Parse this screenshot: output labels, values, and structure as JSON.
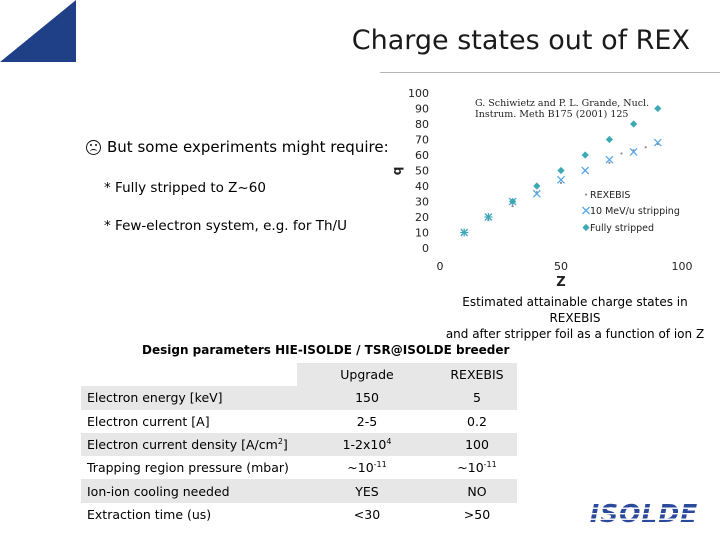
{
  "header": {
    "title": "Charge states out of REX"
  },
  "bullets": {
    "main": "But some experiments might require:",
    "sub1": "* Fully stripped to Z~60",
    "sub2": "* Few-electron system, e.g. for Th/U"
  },
  "chart_data": {
    "type": "scatter",
    "xlabel": "Z",
    "ylabel": "q",
    "xlim": [
      0,
      100
    ],
    "ylim": [
      0,
      100
    ],
    "xticks": [
      0,
      50,
      100
    ],
    "yticks": [
      0,
      10,
      20,
      30,
      40,
      50,
      60,
      70,
      80,
      90,
      100
    ],
    "citation_line1": "G. Schiwietz and P. L. Grande, Nucl.",
    "citation_line2": "Instrum. Meth B175 (2001) 125",
    "legend_position": "right",
    "series": [
      {
        "name": "REXEBIS",
        "color": "#8c8c8c",
        "x": [
          10,
          20,
          30,
          40,
          50,
          60,
          70,
          75,
          80,
          85,
          90
        ],
        "y": [
          10,
          18,
          27,
          36,
          42,
          50,
          55,
          61,
          63,
          65,
          67
        ]
      },
      {
        "name": "10 MeV/u stripping",
        "color": "#59a9e6",
        "x": [
          10,
          20,
          30,
          40,
          50,
          60,
          70,
          80,
          90
        ],
        "y": [
          10,
          20,
          30,
          35,
          44,
          50,
          57,
          62,
          68
        ]
      },
      {
        "name": "Fully stripped",
        "color": "#3da9b5",
        "x": [
          10,
          20,
          30,
          40,
          50,
          60,
          70,
          80,
          90
        ],
        "y": [
          10,
          20,
          30,
          40,
          50,
          60,
          70,
          80,
          90
        ]
      }
    ]
  },
  "caption": {
    "line1": "Estimated attainable charge states in REXEBIS",
    "line2": "and after stripper foil as a function of ion Z"
  },
  "design": {
    "title": "Design parameters HIE-ISOLDE / TSR@ISOLDE breeder",
    "col_upgrade": "Upgrade",
    "col_rexebis": "REXEBIS",
    "rows": [
      {
        "label": "Electron energy [keV]",
        "upgrade": "150",
        "rexebis": "5"
      },
      {
        "label": "Electron current [A]",
        "upgrade": "2-5",
        "rexebis": "0.2"
      },
      {
        "label": "Electron current density [A/cm",
        "label_sup": "2",
        "label_end": "]",
        "upgrade": "1-2x10",
        "upgrade_sup": "4",
        "rexebis": "100"
      },
      {
        "label": "Trapping region pressure (mbar)",
        "upgrade": "~10",
        "upgrade_sup": "-11",
        "rexebis": "~10",
        "rexebis_sup": "-11"
      },
      {
        "label": "Ion-ion cooling needed",
        "upgrade": "YES",
        "rexebis": "NO"
      },
      {
        "label": "Extraction time (us)",
        "upgrade": "<30",
        "rexebis": ">50"
      }
    ]
  },
  "logo": {
    "text": "ISOLDE",
    "color": "#2b4a9b"
  }
}
